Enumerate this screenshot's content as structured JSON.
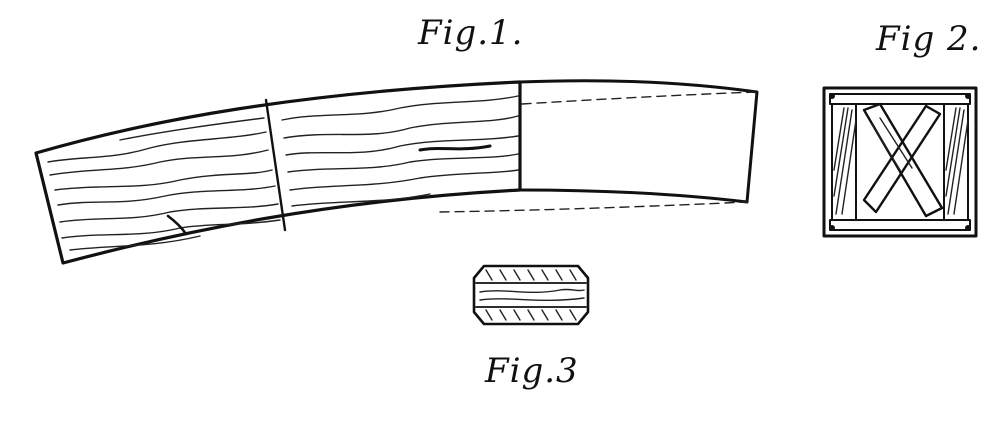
{
  "figures": {
    "fig1": {
      "label": "Fig.1."
    },
    "fig2": {
      "label": "Fig 2."
    },
    "fig3": {
      "label": "Fig.3"
    }
  },
  "colors": {
    "ink": "#111111",
    "paper": "#ffffff"
  }
}
